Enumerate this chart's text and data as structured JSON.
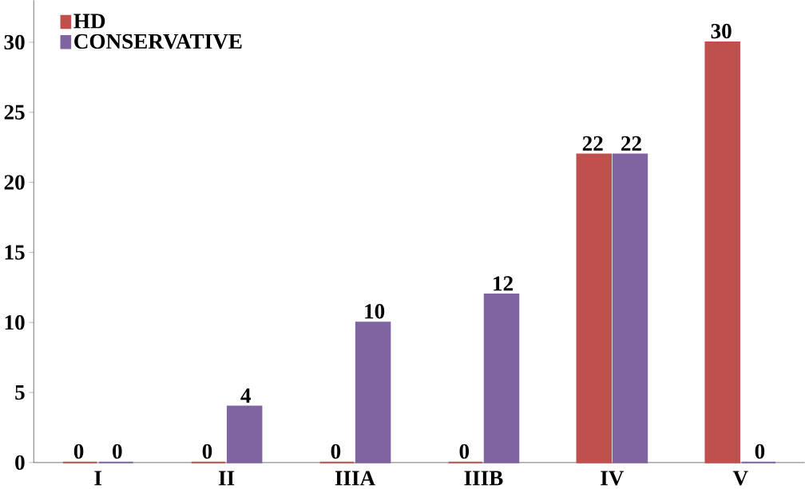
{
  "chart_data": {
    "type": "bar",
    "categories": [
      "I",
      "II",
      "IIIA",
      "IIIB",
      "IV",
      "V"
    ],
    "series": [
      {
        "name": "HD",
        "color": "#c0504d",
        "values": [
          0,
          0,
          0,
          0,
          22,
          30
        ]
      },
      {
        "name": "CONSERVATIVE",
        "color": "#8064a2",
        "values": [
          0,
          4,
          10,
          12,
          22,
          0
        ]
      }
    ],
    "ylim": [
      0,
      33
    ],
    "yticks": [
      0,
      5,
      10,
      15,
      20,
      25,
      30
    ],
    "data_labels": true,
    "legend": "top left",
    "grid": false
  }
}
